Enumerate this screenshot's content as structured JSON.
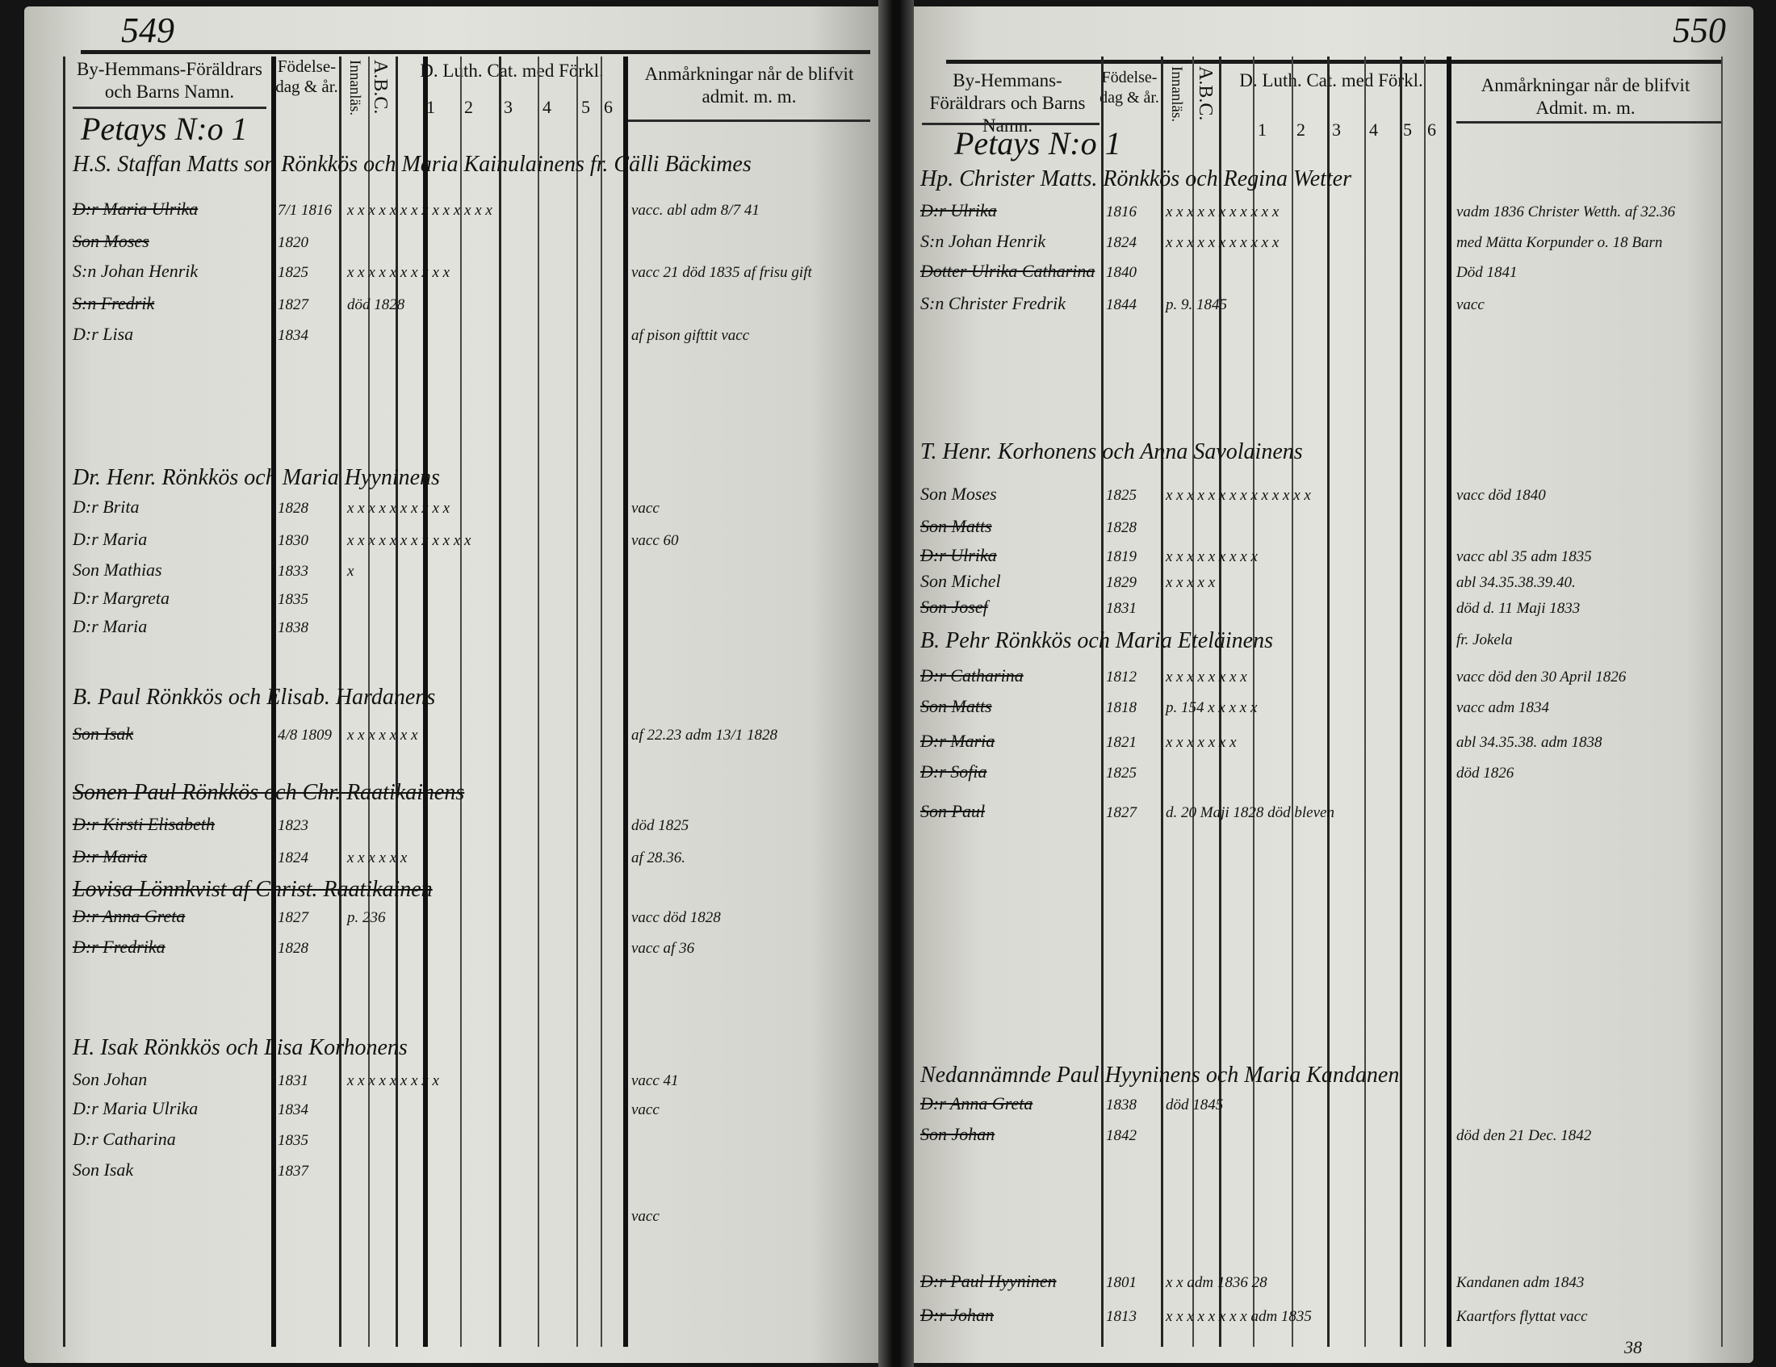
{
  "left_page": {
    "page_number": "549",
    "headers": {
      "names": "By-Hemmans-Föräldrars och Barns Namn.",
      "birth": "Födelse-dag & år.",
      "reading": "Innanläs.",
      "abc": "A.B.C.",
      "catechism": "D. Luth. Cat. med Förkl.",
      "cat_columns": [
        "1",
        "2",
        "3",
        "4",
        "5",
        "6"
      ],
      "remarks": "Anmårkningar når de blifvit admit. m. m."
    },
    "village": "Petays N:o 1",
    "entries": [
      {
        "name": "H.S. Staffan Matts son Rönkkös och Maria Kainulainens fr. Cälli Bäckimes",
        "kind": "head"
      },
      {
        "name": "D:r Maria Ulrika",
        "date": "7/1 1816",
        "marks": "x x x x x x x x x x x x x x",
        "remark": "vacc. abl adm 8/7 41",
        "struck": true
      },
      {
        "name": "Son Moses",
        "date": "1820",
        "struck": true
      },
      {
        "name": "S:n Johan Henrik",
        "date": "1825",
        "marks": "x x x x x x x x x x",
        "remark": "vacc 21 död 1835 af frisu gift"
      },
      {
        "name": "S:n Fredrik",
        "date": "1827",
        "marks": "död 1828",
        "struck": true
      },
      {
        "name": "D:r Lisa",
        "date": "1834",
        "remark": "af pison gifttit vacc"
      },
      {
        "name": "Dr. Henr. Rönkkös och Maria Hyyninens",
        "kind": "head"
      },
      {
        "name": "D:r Brita",
        "date": "1828",
        "marks": "x x x x x x x x x x",
        "remark": "vacc"
      },
      {
        "name": "D:r Maria",
        "date": "1830",
        "marks": "x x x x x x x x x x x x",
        "remark": "vacc 60"
      },
      {
        "name": "Son Mathias",
        "date": "1833",
        "marks": "x"
      },
      {
        "name": "D:r Margreta",
        "date": "1835"
      },
      {
        "name": "D:r Maria",
        "date": "1838"
      },
      {
        "name": "B. Paul Rönkkös och Elisab. Hardanens",
        "kind": "head"
      },
      {
        "name": "Son Isak",
        "date": "4/8 1809",
        "marks": "x x x x x x x",
        "remark": "af 22.23 adm 13/1 1828",
        "struck": true
      },
      {
        "name": "Sonen Paul Rönkkös och Chr. Raatikainens",
        "kind": "head",
        "struck": true
      },
      {
        "name": "D:r Kirsti Elisabeth",
        "date": "1823",
        "remark": "död 1825",
        "struck": true
      },
      {
        "name": "D:r Maria",
        "date": "1824",
        "marks": "x x x x x x",
        "remark": "af 28.36.",
        "struck": true
      },
      {
        "name": "Lovisa Lönnkvist af Christ. Raatikainen",
        "kind": "head",
        "struck": true
      },
      {
        "name": "D:r Anna Greta",
        "date": "1827",
        "marks": "p. 236",
        "remark": "vacc död 1828",
        "struck": true
      },
      {
        "name": "D:r Fredrika",
        "date": "1828",
        "remark": "vacc af 36",
        "struck": true
      },
      {
        "name": "H. Isak Rönkkös och Lisa Korhonens",
        "kind": "head"
      },
      {
        "name": "Son Johan",
        "date": "1831",
        "marks": "x x x x x x x x x",
        "remark": "vacc 41"
      },
      {
        "name": "D:r Maria Ulrika",
        "date": "1834",
        "remark": "vacc"
      },
      {
        "name": "D:r Catharina",
        "date": "1835"
      },
      {
        "name": "Son Isak",
        "date": "1837"
      },
      {
        "name": "",
        "remark": "vacc"
      }
    ]
  },
  "right_page": {
    "page_number": "550",
    "headers": {
      "names": "By-Hemmans-Föräldrars och Barns Namn.",
      "birth": "Födelse-dag & år.",
      "reading": "Innanläs.",
      "abc": "A.B.C.",
      "catechism": "D. Luth. Cat. med Förkl.",
      "cat_columns": [
        "1",
        "2",
        "3",
        "4",
        "5",
        "6"
      ],
      "remarks": "Anmårkningar når de blifvit Admit. m. m."
    },
    "village": "Petays N:o 1",
    "footer_number": "38",
    "entries": [
      {
        "name": "Hp. Christer Matts. Rönkkös och Regina Wetter",
        "kind": "head"
      },
      {
        "name": "D:r Ulrika",
        "date": "1816",
        "marks": "x x x x x x x x x x x",
        "remark": "vadm 1836 Christer Wetth. af 32.36",
        "struck": true
      },
      {
        "name": "S:n Johan Henrik",
        "date": "1824",
        "marks": "x x x x x x x x x x x",
        "remark": "med Mätta Korpunder o. 18 Barn"
      },
      {
        "name": "Dotter Ulrika Catharina",
        "date": "1840",
        "remark": "Död 1841",
        "struck": true
      },
      {
        "name": "S:n Christer Fredrik",
        "date": "1844",
        "marks": "p. 9. 1845",
        "remark": "vacc"
      },
      {
        "name": "T. Henr. Korhonens och Anna Savolainens",
        "kind": "head"
      },
      {
        "name": "Son Moses",
        "date": "1825",
        "marks": "x x x x x x x x x x x x x x",
        "remark": "vacc död 1840"
      },
      {
        "name": "Son Matts",
        "date": "1828",
        "struck": true
      },
      {
        "name": "D:r Ulrika",
        "date": "1819",
        "marks": "x x x x x x x x x",
        "remark": "vacc abl 35 adm 1835",
        "struck": true
      },
      {
        "name": "Son Michel",
        "date": "1829",
        "marks": "x x x x x",
        "remark": "abl 34.35.38.39.40."
      },
      {
        "name": "Son Josef",
        "date": "1831",
        "remark": "död d. 11 Maji 1833",
        "struck": true
      },
      {
        "name": "B. Pehr Rönkkös och Maria Eteläinens",
        "kind": "head",
        "remark": "fr. Jokela"
      },
      {
        "name": "D:r Catharina",
        "date": "1812",
        "marks": "x x x x x x x x",
        "remark": "vacc död den 30 April 1826",
        "struck": true
      },
      {
        "name": "Son Matts",
        "date": "1818",
        "marks": "p. 154 x x x x x",
        "remark": "vacc adm 1834",
        "struck": true
      },
      {
        "name": "D:r Maria",
        "date": "1821",
        "marks": "x x x x x x x",
        "remark": "abl 34.35.38. adm 1838",
        "struck": true
      },
      {
        "name": "D:r Sofia",
        "date": "1825",
        "remark": "död 1826",
        "struck": true
      },
      {
        "name": "Son Paul",
        "date": "1827",
        "marks": "d. 20 Maji 1828 död bleven",
        "struck": true
      },
      {
        "name": "Nedannämnde Paul Hyyninens och Maria Kandanen",
        "kind": "head"
      },
      {
        "name": "D:r Anna Greta",
        "date": "1838",
        "marks": "död 1845",
        "struck": true
      },
      {
        "name": "Son Johan",
        "date": "1842",
        "remark": "död den 21 Dec. 1842",
        "struck": true
      },
      {
        "name": "D:r Paul Hyyninen",
        "date": "1801",
        "marks": "x x adm 1836 28",
        "remark": "Kandanen adm 1843",
        "struck": true
      },
      {
        "name": "D:r Johan",
        "date": "1813",
        "marks": "x x x x x x x x adm 1835",
        "remark": "Kaartfors flyttat vacc",
        "struck": true
      }
    ]
  }
}
